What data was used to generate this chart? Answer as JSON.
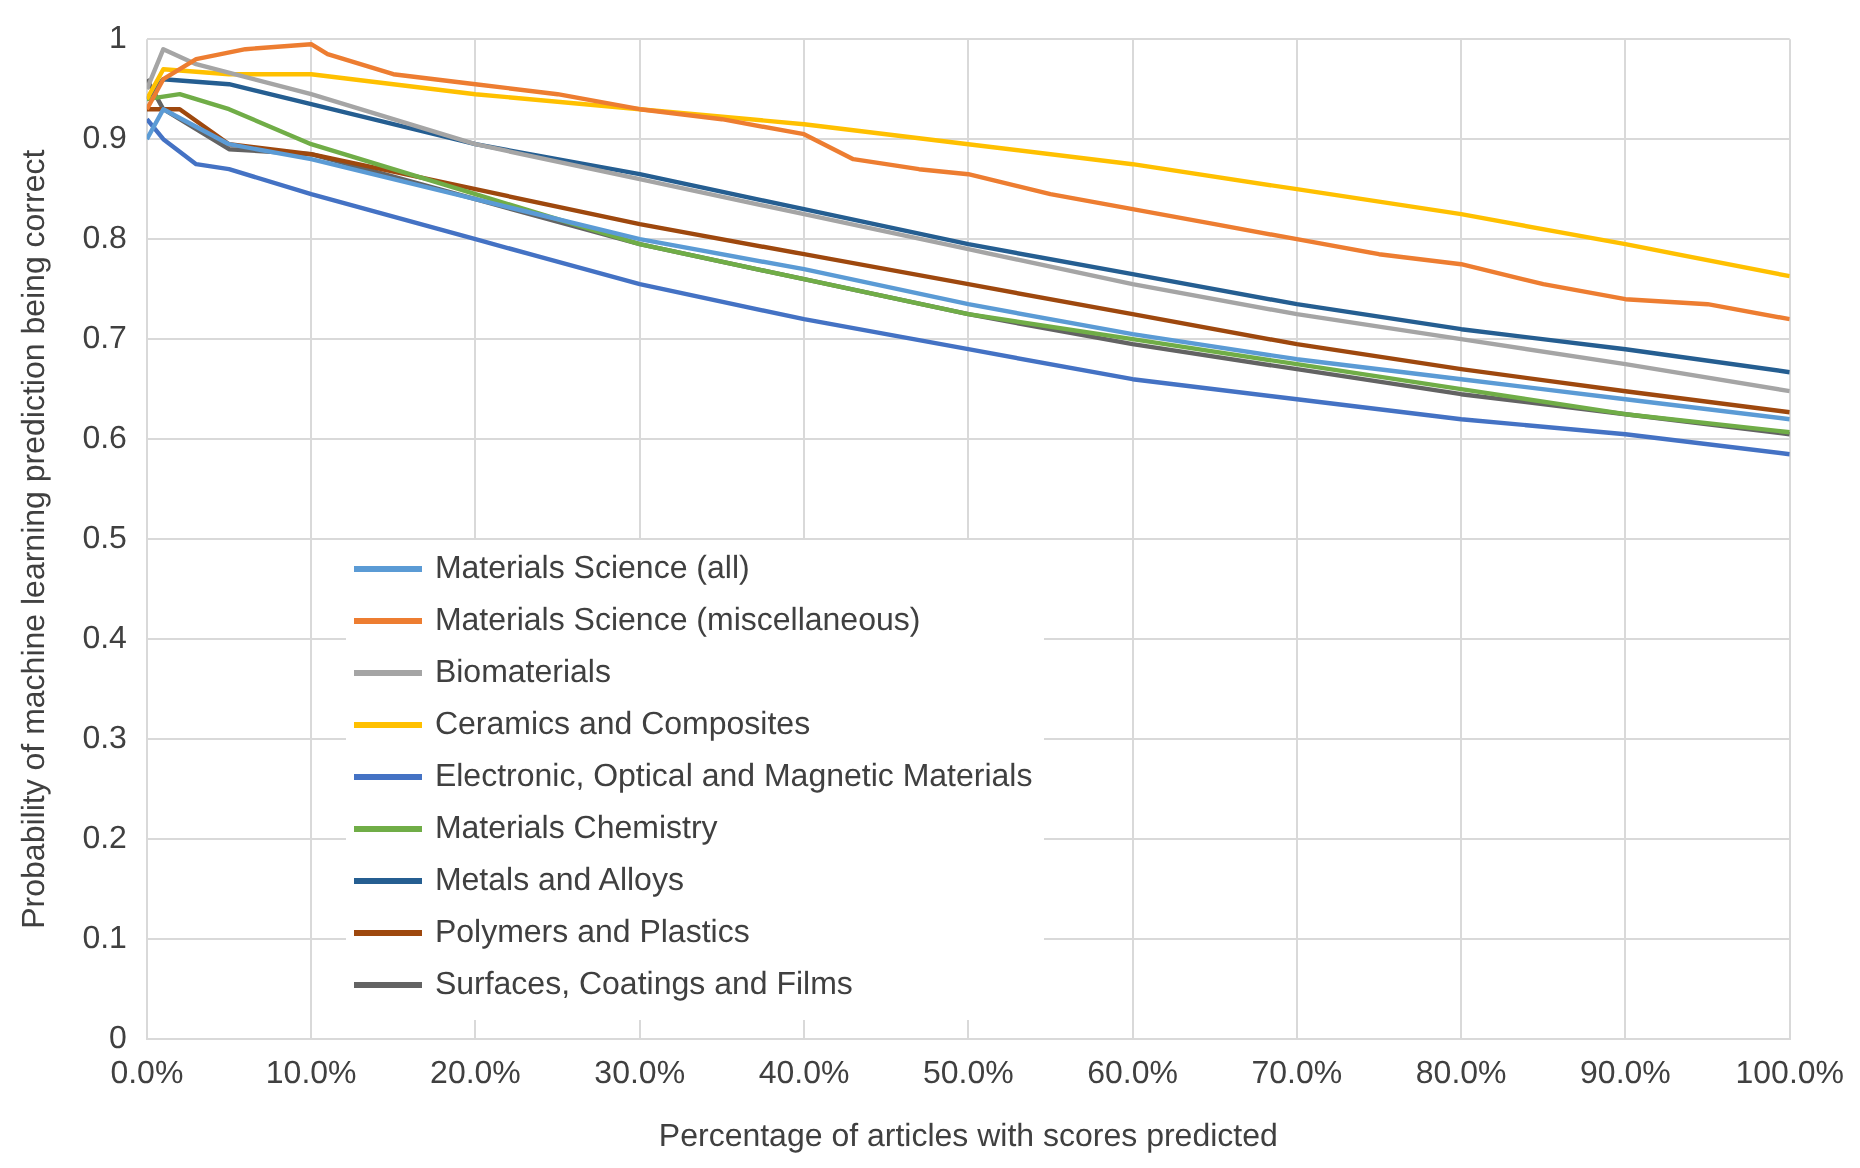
{
  "chart_data": {
    "type": "line",
    "xlabel": "Percentage of articles with scores predicted",
    "ylabel": "Probability of machine learning prediction being correct",
    "xlim": [
      0,
      100
    ],
    "ylim": [
      0,
      1
    ],
    "xticks": [
      {
        "value": 0,
        "label": "0.0%"
      },
      {
        "value": 10,
        "label": "10.0%"
      },
      {
        "value": 20,
        "label": "20.0%"
      },
      {
        "value": 30,
        "label": "30.0%"
      },
      {
        "value": 40,
        "label": "40.0%"
      },
      {
        "value": 50,
        "label": "50.0%"
      },
      {
        "value": 60,
        "label": "60.0%"
      },
      {
        "value": 70,
        "label": "70.0%"
      },
      {
        "value": 80,
        "label": "80.0%"
      },
      {
        "value": 90,
        "label": "90.0%"
      },
      {
        "value": 100,
        "label": "100.0%"
      }
    ],
    "yticks": [
      0,
      0.1,
      0.2,
      0.3,
      0.4,
      0.5,
      0.6,
      0.7,
      0.8,
      0.9,
      1
    ],
    "grid": true,
    "legend": "bottom left",
    "marker": "none",
    "line_style": "solid",
    "series": [
      {
        "name": "Materials Science (all)",
        "color": "#5b9bd5",
        "x": [
          0,
          1,
          5,
          10,
          20,
          30,
          40,
          50,
          60,
          70,
          80,
          90,
          100
        ],
        "values": [
          0.9,
          0.93,
          0.895,
          0.88,
          0.84,
          0.8,
          0.77,
          0.735,
          0.705,
          0.68,
          0.66,
          0.64,
          0.62
        ]
      },
      {
        "name": "Materials Science (miscellaneous)",
        "color": "#ed7d31",
        "x": [
          0,
          1,
          3,
          6,
          10,
          11,
          15,
          20,
          25,
          30,
          35,
          40,
          43,
          47,
          50,
          55,
          60,
          65,
          70,
          75,
          80,
          85,
          90,
          95,
          100
        ],
        "values": [
          0.93,
          0.96,
          0.98,
          0.99,
          0.995,
          0.985,
          0.965,
          0.955,
          0.945,
          0.93,
          0.92,
          0.905,
          0.88,
          0.87,
          0.865,
          0.845,
          0.83,
          0.815,
          0.8,
          0.785,
          0.775,
          0.755,
          0.74,
          0.735,
          0.72
        ]
      },
      {
        "name": "Biomaterials",
        "color": "#a5a5a5",
        "x": [
          0,
          1,
          3,
          10,
          20,
          30,
          40,
          50,
          60,
          70,
          80,
          90,
          100
        ],
        "values": [
          0.95,
          0.99,
          0.975,
          0.945,
          0.895,
          0.86,
          0.825,
          0.79,
          0.755,
          0.725,
          0.7,
          0.675,
          0.648
        ]
      },
      {
        "name": "Ceramics and Composites",
        "color": "#ffc000",
        "x": [
          0,
          1,
          5,
          10,
          20,
          30,
          40,
          50,
          60,
          70,
          80,
          90,
          100
        ],
        "values": [
          0.94,
          0.97,
          0.965,
          0.965,
          0.945,
          0.93,
          0.915,
          0.895,
          0.875,
          0.85,
          0.825,
          0.795,
          0.763
        ]
      },
      {
        "name": "Electronic, Optical and Magnetic Materials",
        "color": "#4472c4",
        "x": [
          0,
          1,
          3,
          5,
          10,
          20,
          30,
          40,
          50,
          60,
          70,
          80,
          90,
          100
        ],
        "values": [
          0.92,
          0.9,
          0.875,
          0.87,
          0.845,
          0.8,
          0.755,
          0.72,
          0.69,
          0.66,
          0.64,
          0.62,
          0.605,
          0.585
        ]
      },
      {
        "name": "Materials Chemistry",
        "color": "#70ad47",
        "x": [
          0,
          2,
          5,
          10,
          20,
          30,
          40,
          50,
          60,
          70,
          80,
          90,
          100
        ],
        "values": [
          0.94,
          0.945,
          0.93,
          0.895,
          0.845,
          0.795,
          0.76,
          0.725,
          0.7,
          0.675,
          0.65,
          0.625,
          0.607
        ]
      },
      {
        "name": "Metals and Alloys",
        "color": "#255e91",
        "x": [
          0,
          1,
          5,
          10,
          20,
          30,
          40,
          50,
          60,
          70,
          80,
          90,
          100
        ],
        "values": [
          0.94,
          0.96,
          0.955,
          0.935,
          0.895,
          0.865,
          0.83,
          0.795,
          0.765,
          0.735,
          0.71,
          0.69,
          0.667
        ]
      },
      {
        "name": "Polymers and Plastics",
        "color": "#9e480e",
        "x": [
          0,
          2,
          5,
          10,
          20,
          30,
          40,
          50,
          60,
          70,
          80,
          90,
          100
        ],
        "values": [
          0.93,
          0.93,
          0.895,
          0.885,
          0.85,
          0.815,
          0.785,
          0.755,
          0.725,
          0.695,
          0.67,
          0.648,
          0.627
        ]
      },
      {
        "name": "Surfaces, Coatings and Films",
        "color": "#636363",
        "x": [
          0,
          1,
          3,
          5,
          10,
          20,
          30,
          40,
          50,
          60,
          70,
          80,
          90,
          100
        ],
        "values": [
          0.96,
          0.93,
          0.91,
          0.89,
          0.885,
          0.84,
          0.795,
          0.76,
          0.725,
          0.695,
          0.67,
          0.645,
          0.625,
          0.605
        ]
      }
    ]
  }
}
